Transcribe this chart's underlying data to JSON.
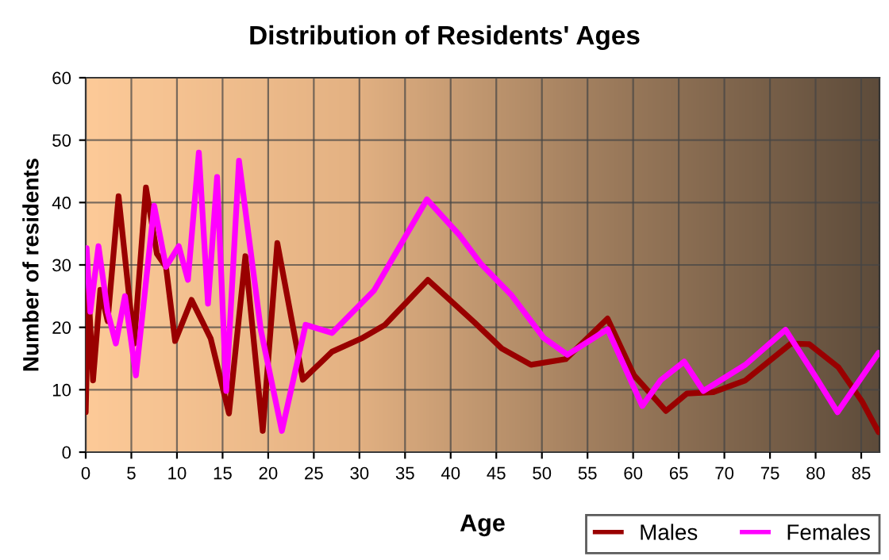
{
  "chart_data": {
    "type": "line",
    "title": "Distribution of Residents' Ages",
    "xlabel": "Age",
    "ylabel": "Number of residents",
    "xlim": [
      0,
      87
    ],
    "xticks": [
      0,
      5,
      10,
      15,
      20,
      25,
      30,
      35,
      40,
      45,
      50,
      55,
      60,
      65,
      70,
      75,
      80,
      85
    ],
    "ylim": [
      0,
      60
    ],
    "yticks": [
      0,
      10,
      20,
      30,
      40,
      50,
      60
    ],
    "grid": true,
    "legend": "bottom right",
    "marker": "none",
    "line_style": "solid",
    "series": [
      {
        "name": "Males",
        "color": "#990000",
        "x": [
          0,
          0.3,
          0.8,
          1.6,
          2.4,
          3.6,
          5.3,
          6.6,
          7.8,
          8.8,
          9.8,
          11.6,
          13.7,
          15.7,
          17.5,
          19.4,
          21,
          23.8,
          27,
          30.2,
          32.8,
          37.5,
          42.6,
          45.6,
          48.8,
          52.6,
          57.2,
          60.1,
          63.6,
          65.9,
          68.8,
          72.3,
          77.3,
          79.3,
          82.5,
          85.1,
          86.9
        ],
        "values": [
          6.4,
          26,
          11.5,
          26,
          21,
          41,
          17.4,
          42.4,
          31.8,
          29.7,
          17.8,
          24.4,
          18.2,
          6.2,
          31.4,
          3.4,
          33.5,
          11.6,
          16.1,
          18.2,
          20.4,
          27.6,
          20.8,
          16.6,
          14,
          14.9,
          21.4,
          12.3,
          6.6,
          9.4,
          9.6,
          11.5,
          17.4,
          17.3,
          13.6,
          8.1,
          3.2
        ]
      },
      {
        "name": "Females",
        "color": "#ff00ff",
        "x": [
          0.1,
          0.5,
          1.4,
          2.4,
          3.3,
          4.3,
          5.5,
          7.5,
          8.8,
          10.2,
          11.2,
          12.4,
          13.4,
          14.4,
          15.4,
          16.8,
          19.2,
          21.5,
          24.1,
          27,
          31.6,
          37.4,
          40.9,
          43.3,
          46.7,
          50.2,
          52.8,
          57.2,
          61,
          63,
          65.6,
          67.7,
          72.3,
          76.7,
          79.9,
          82.4,
          86.9
        ],
        "values": [
          32.7,
          22.5,
          33,
          22.5,
          17.4,
          25,
          12.3,
          39.5,
          29.7,
          33,
          27.6,
          48,
          23.8,
          44.1,
          9.8,
          46.7,
          19.5,
          3.4,
          20.4,
          19.1,
          25.9,
          40.5,
          34.9,
          30.2,
          25.1,
          18.3,
          15.6,
          19.7,
          7.4,
          11.5,
          14.5,
          9.8,
          14,
          19.6,
          12.3,
          6.4,
          15.9
        ]
      }
    ]
  }
}
